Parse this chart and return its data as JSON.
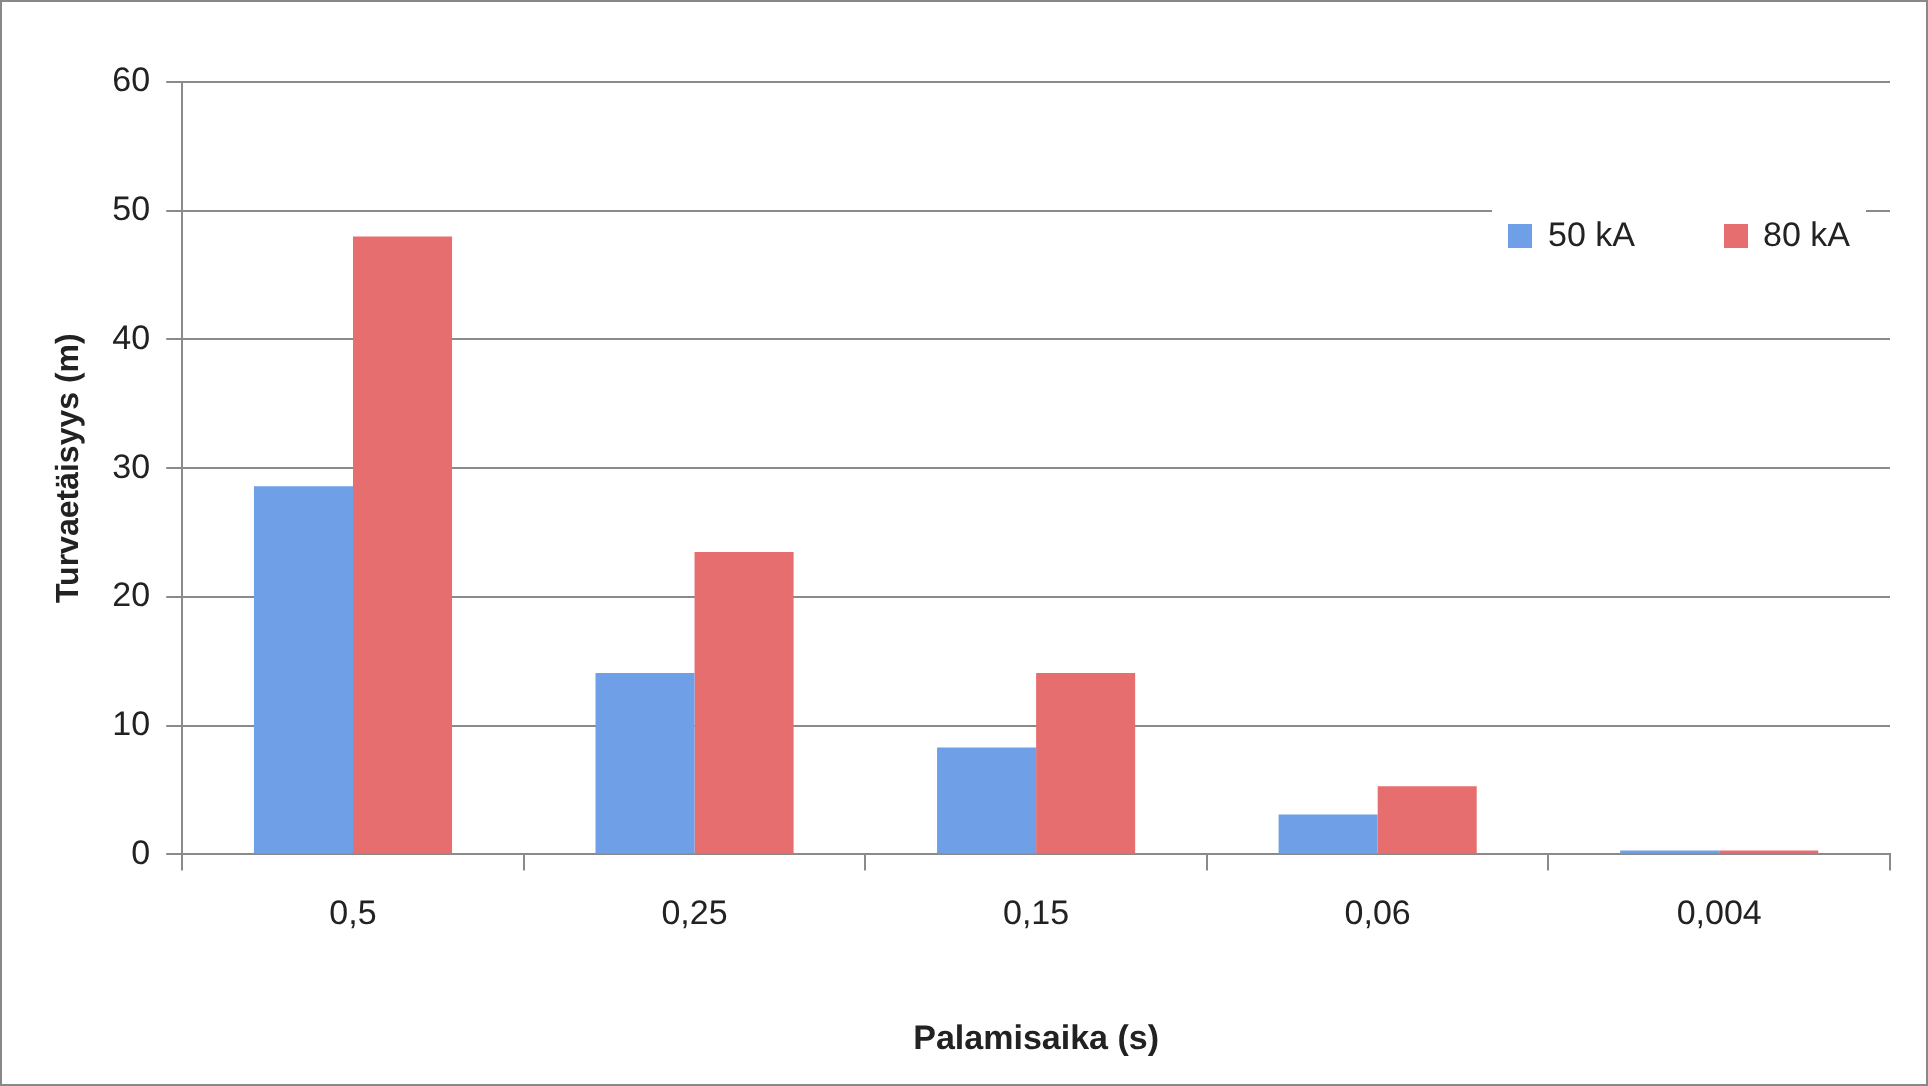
{
  "chart_data": {
    "type": "bar",
    "xlabel": "Palamisaika (s)",
    "ylabel": "Turvaetäisyys (m)",
    "categories": [
      "0,5",
      "0,25",
      "0,15",
      "0,06",
      "0,004"
    ],
    "series": [
      {
        "name": "50 kA",
        "color": "#6f9fe6",
        "values": [
          28.6,
          14.1,
          8.3,
          3.1,
          0.3
        ]
      },
      {
        "name": "80 kA",
        "color": "#e66e6e",
        "values": [
          48,
          23.5,
          14.1,
          5.3,
          0.3
        ]
      }
    ],
    "ylim": [
      0,
      60
    ],
    "yticks": [
      0,
      10,
      20,
      30,
      40,
      50,
      60
    ],
    "grid": "y",
    "legend": "top right"
  }
}
